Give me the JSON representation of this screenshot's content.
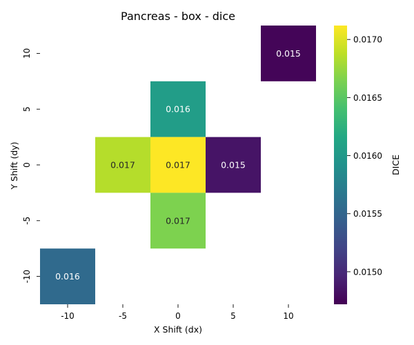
{
  "chart_data": {
    "type": "heatmap",
    "title": "Pancreas - box - dice",
    "xlabel": "X Shift (dx)",
    "ylabel": "Y Shift (dy)",
    "x_categories": [
      "-10",
      "-5",
      "0",
      "5",
      "10"
    ],
    "y_categories": [
      "10",
      "5",
      "0",
      "-5",
      "-10"
    ],
    "cells": [
      {
        "x": "10",
        "y": "10",
        "value": 0.01475,
        "label": "0.015",
        "label_color": "white"
      },
      {
        "x": "0",
        "y": "5",
        "value": 0.01605,
        "label": "0.016",
        "label_color": "white"
      },
      {
        "x": "-5",
        "y": "0",
        "value": 0.01685,
        "label": "0.017",
        "label_color": "black"
      },
      {
        "x": "0",
        "y": "0",
        "value": 0.01712,
        "label": "0.017",
        "label_color": "black"
      },
      {
        "x": "5",
        "y": "0",
        "value": 0.01485,
        "label": "0.015",
        "label_color": "white"
      },
      {
        "x": "0",
        "y": "-5",
        "value": 0.01665,
        "label": "0.017",
        "label_color": "black"
      },
      {
        "x": "-10",
        "y": "-10",
        "value": 0.01555,
        "label": "0.016",
        "label_color": "white"
      }
    ],
    "colorbar": {
      "label": "DICE",
      "colormap": "viridis",
      "range": [
        0.01472,
        0.01712
      ],
      "ticks": [
        0.015,
        0.0155,
        0.016,
        0.0165,
        0.017
      ],
      "tick_labels": [
        "0.0150",
        "0.0155",
        "0.0160",
        "0.0165",
        "0.0170"
      ]
    },
    "grid": false,
    "legend": "colorbar-right"
  }
}
